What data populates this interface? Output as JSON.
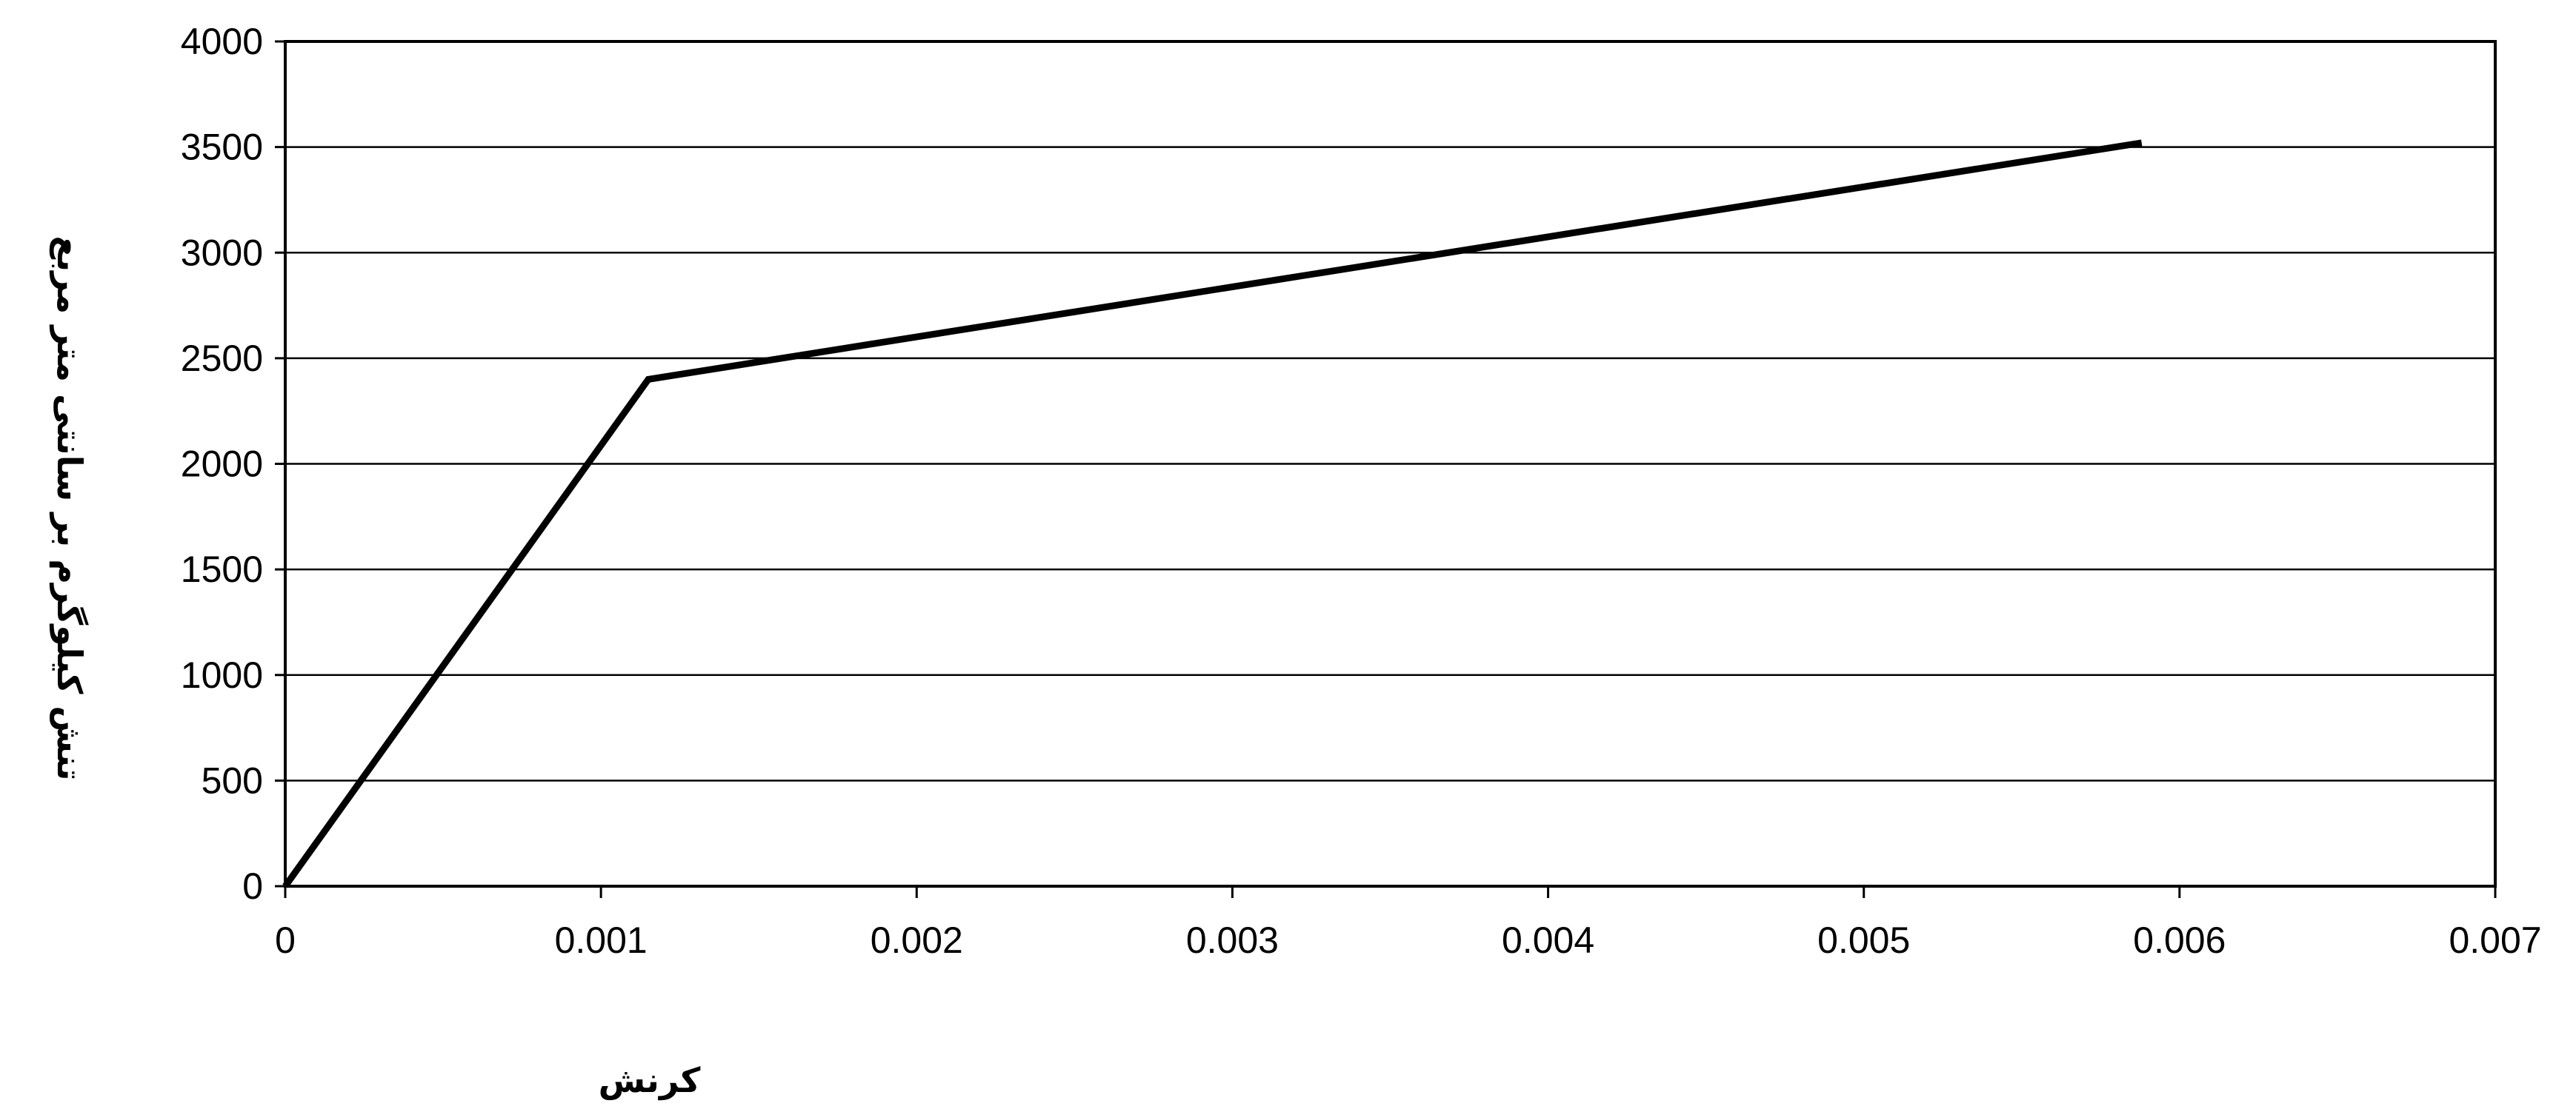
{
  "chart_data": {
    "type": "line",
    "title": "",
    "xlabel": "کرنش",
    "ylabel": "تنش کیلوگرم بر سانتی متر مربع",
    "xlim": [
      0,
      0.007
    ],
    "ylim": [
      0,
      4000
    ],
    "x_ticks": [
      "0",
      "0.001",
      "0.002",
      "0.003",
      "0.004",
      "0.005",
      "0.006",
      "0.007"
    ],
    "y_ticks": [
      "0",
      "500",
      "1000",
      "1500",
      "2000",
      "2500",
      "3000",
      "3500",
      "4000"
    ],
    "grid": "horizontal",
    "legend": "none",
    "series": [
      {
        "x": [
          0,
          0.00115,
          0.00588
        ],
        "y": [
          0,
          2400,
          3520
        ],
        "color": "#000000"
      }
    ],
    "colors": {
      "line": "#000000",
      "grid": "#000000",
      "frame": "#000000",
      "background": "#ffffff"
    }
  }
}
